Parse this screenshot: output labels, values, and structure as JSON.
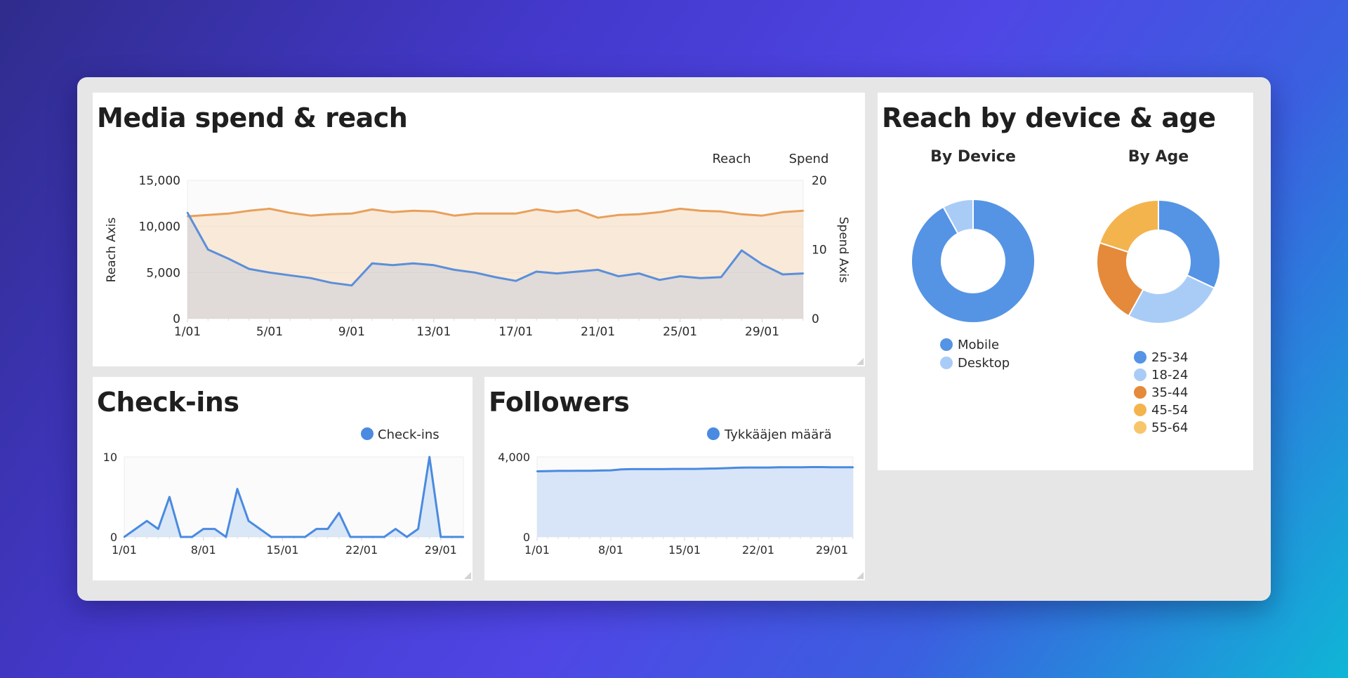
{
  "colors": {
    "reach": "#5b8fd9",
    "spend": "#e8a05a",
    "blue": "#4a8ae0",
    "mobile": "#5594e4",
    "desktop": "#a9ccf7",
    "age_25_34": "#5594e4",
    "age_18_24": "#a9ccf7",
    "age_35_44": "#e48a3a",
    "age_45_54": "#f3b44e",
    "age_55_64": "#f7c56a"
  },
  "cards": {
    "media": {
      "title": "Media spend & reach"
    },
    "checkins": {
      "title": "Check-ins"
    },
    "followers": {
      "title": "Followers"
    },
    "reach_device_age": {
      "title": "Reach by device & age"
    }
  },
  "chart_data": [
    {
      "id": "media",
      "type": "area",
      "title": "Media spend & reach",
      "legend": [
        "Reach",
        "Spend"
      ],
      "ylabel": "Reach Axis",
      "y2label": "Spend Axis",
      "ylim": [
        0,
        15000
      ],
      "y2lim": [
        0,
        20
      ],
      "yticks": [
        "15,000",
        "10,000",
        "5,000",
        "0"
      ],
      "y2ticks": [
        "20",
        "10",
        "0"
      ],
      "xticks": [
        "1/01",
        "5/01",
        "9/01",
        "13/01",
        "17/01",
        "21/01",
        "25/01",
        "29/01"
      ],
      "x": [
        1,
        2,
        3,
        4,
        5,
        6,
        7,
        8,
        9,
        10,
        11,
        12,
        13,
        14,
        15,
        16,
        17,
        18,
        19,
        20,
        21,
        22,
        23,
        24,
        25,
        26,
        27,
        28,
        29,
        30,
        31
      ],
      "series": [
        {
          "name": "Reach",
          "axis": "left",
          "values": [
            11500,
            7500,
            6500,
            5400,
            5000,
            4700,
            4400,
            3900,
            3600,
            6000,
            5800,
            6000,
            5800,
            5300,
            5000,
            4500,
            4100,
            5100,
            4900,
            5100,
            5300,
            4600,
            4900,
            4200,
            4600,
            4400,
            4500,
            7400,
            5900,
            4800,
            4900
          ]
        },
        {
          "name": "Spend",
          "axis": "right",
          "values": [
            14.8,
            15.0,
            15.2,
            15.6,
            15.9,
            15.3,
            14.9,
            15.1,
            15.2,
            15.8,
            15.4,
            15.6,
            15.5,
            14.9,
            15.2,
            15.2,
            15.2,
            15.8,
            15.4,
            15.7,
            14.6,
            15.0,
            15.1,
            15.4,
            15.9,
            15.6,
            15.5,
            15.1,
            14.9,
            15.4,
            15.6
          ]
        }
      ]
    },
    {
      "id": "checkins",
      "type": "area",
      "title": "Check-ins",
      "legend": [
        "Check-ins"
      ],
      "ylim": [
        0,
        10
      ],
      "yticks": [
        "10",
        "0"
      ],
      "xticks": [
        "1/01",
        "8/01",
        "15/01",
        "22/01",
        "29/01"
      ],
      "x": [
        1,
        2,
        3,
        4,
        5,
        6,
        7,
        8,
        9,
        10,
        11,
        12,
        13,
        14,
        15,
        16,
        17,
        18,
        19,
        20,
        21,
        22,
        23,
        24,
        25,
        26,
        27,
        28,
        29,
        30,
        31
      ],
      "series": [
        {
          "name": "Check-ins",
          "values": [
            0,
            1,
            2,
            1,
            5,
            0,
            0,
            1,
            1,
            0,
            6,
            2,
            1,
            0,
            0,
            0,
            0,
            1,
            1,
            3,
            0,
            0,
            0,
            0,
            1,
            0,
            1,
            10,
            0,
            0,
            0
          ]
        }
      ]
    },
    {
      "id": "followers",
      "type": "area",
      "title": "Followers",
      "legend": [
        "Tykkääjen määrä"
      ],
      "ylim": [
        0,
        4000
      ],
      "yticks": [
        "4,000",
        "0"
      ],
      "xticks": [
        "1/01",
        "8/01",
        "15/01",
        "22/01",
        "29/01"
      ],
      "x": [
        1,
        2,
        3,
        4,
        5,
        6,
        7,
        8,
        9,
        10,
        11,
        12,
        13,
        14,
        15,
        16,
        17,
        18,
        19,
        20,
        21,
        22,
        23,
        24,
        25,
        26,
        27,
        28,
        29,
        30,
        31
      ],
      "series": [
        {
          "name": "Tykkääjen määrä",
          "values": [
            3280,
            3290,
            3300,
            3300,
            3310,
            3310,
            3320,
            3330,
            3380,
            3390,
            3390,
            3390,
            3390,
            3400,
            3400,
            3400,
            3410,
            3420,
            3440,
            3460,
            3470,
            3470,
            3470,
            3480,
            3480,
            3480,
            3490,
            3490,
            3480,
            3480,
            3480
          ]
        }
      ]
    },
    {
      "id": "by_device",
      "type": "pie",
      "title": "By Device",
      "labels": [
        "Mobile",
        "Desktop"
      ],
      "values": [
        92,
        8
      ]
    },
    {
      "id": "by_age",
      "type": "pie",
      "title": "By Age",
      "labels": [
        "25-34",
        "18-24",
        "35-44",
        "45-54",
        "55-64"
      ],
      "values": [
        32,
        26,
        22,
        20,
        0
      ]
    }
  ]
}
